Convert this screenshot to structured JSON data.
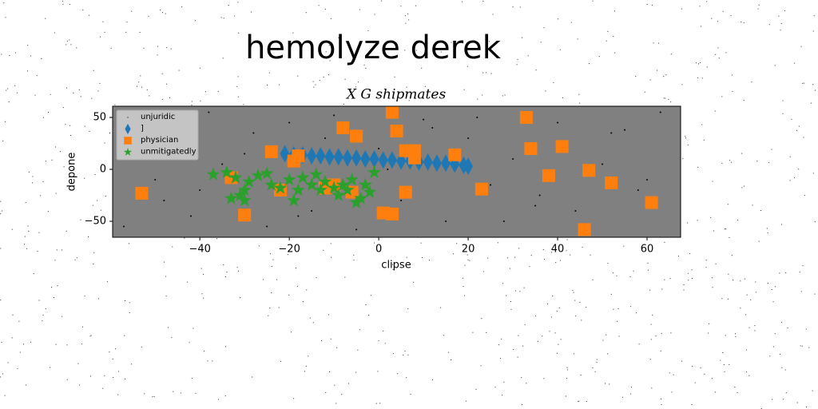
{
  "chart_data": {
    "type": "scatter",
    "title": "hemolyze derek",
    "subtitle": "X G shipmates",
    "x_label": "clipse",
    "y_label": "depone",
    "xlim": [
      -59.5,
      67.5
    ],
    "ylim": [
      -65.4,
      60.8
    ],
    "xticks": [
      {
        "value": -40,
        "label": "−40"
      },
      {
        "value": -20,
        "label": "−20"
      },
      0,
      20,
      40,
      60
    ],
    "yticks": [
      {
        "value": -50,
        "label": "−50"
      },
      0,
      50
    ],
    "legend": "upper left",
    "background": "#808080",
    "series": [
      {
        "name": "unjuridic",
        "color": "#000000",
        "marker": "point",
        "x": [
          -55,
          -50,
          -45,
          -42,
          -38,
          -35,
          -28,
          -25,
          -20,
          -15,
          -10,
          -5,
          0,
          5,
          10,
          15,
          20,
          25,
          30,
          35,
          40,
          45,
          50,
          55,
          60,
          63,
          -48,
          -30,
          -12,
          12,
          28,
          44,
          58,
          -40,
          -18,
          2,
          22,
          36,
          52,
          -57
        ],
        "y": [
          40,
          -10,
          25,
          -45,
          55,
          5,
          35,
          -55,
          45,
          -40,
          52,
          -58,
          20,
          -30,
          48,
          -50,
          30,
          -15,
          10,
          -35,
          45,
          -60,
          5,
          38,
          -10,
          55,
          -30,
          15,
          30,
          40,
          -50,
          -40,
          -20,
          -20,
          -45,
          0,
          50,
          -25,
          35,
          -55
        ]
      },
      {
        "name": "]",
        "color": "#1f77b4",
        "marker": "thin_diamond",
        "x": [
          -21,
          -19,
          -17,
          -15,
          -13,
          -11,
          -9,
          -7,
          -5,
          -3,
          -1,
          1,
          3,
          5,
          7,
          9,
          11,
          13,
          15,
          17,
          19,
          20
        ],
        "y": [
          15,
          14,
          14,
          13,
          13,
          12,
          12,
          11,
          11,
          10,
          10,
          9,
          9,
          8,
          8,
          7,
          7,
          6,
          6,
          5,
          4,
          3
        ]
      },
      {
        "name": "physician",
        "color": "#ff7f0e",
        "marker": "square",
        "x": [
          -53,
          -24,
          -19,
          -18,
          -22,
          -30,
          -33,
          -8,
          -5,
          3,
          4,
          6,
          8,
          8,
          6,
          1,
          3,
          17,
          23,
          33,
          34,
          38,
          41,
          47,
          52,
          61,
          46,
          -10,
          -12,
          -6
        ],
        "y": [
          -23,
          17,
          8,
          13,
          -20,
          -44,
          -8,
          40,
          32,
          55,
          37,
          18,
          18,
          11,
          -22,
          -42,
          -43,
          14,
          -19,
          50,
          20,
          -6,
          22,
          -1,
          -13,
          -32,
          -58,
          -15,
          -18,
          -22
        ]
      },
      {
        "name": "unmitigatedly",
        "color": "#2ca02c",
        "marker": "star",
        "x": [
          -37,
          -34,
          -33,
          -32,
          -31,
          -30,
          -29,
          -27,
          -25,
          -24,
          -22,
          -20,
          -19,
          -18,
          -17,
          -15,
          -14,
          -13,
          -12,
          -10,
          -9,
          -8,
          -7,
          -6,
          -5,
          -4,
          -3,
          -2,
          -1,
          -30
        ],
        "y": [
          -5,
          -3,
          -28,
          -8,
          -25,
          -30,
          -12,
          -6,
          -4,
          -15,
          -18,
          -10,
          -30,
          -20,
          -8,
          -15,
          -5,
          -20,
          -12,
          -18,
          -25,
          -15,
          -20,
          -10,
          -32,
          -28,
          -15,
          -22,
          -3,
          -20
        ]
      }
    ]
  }
}
